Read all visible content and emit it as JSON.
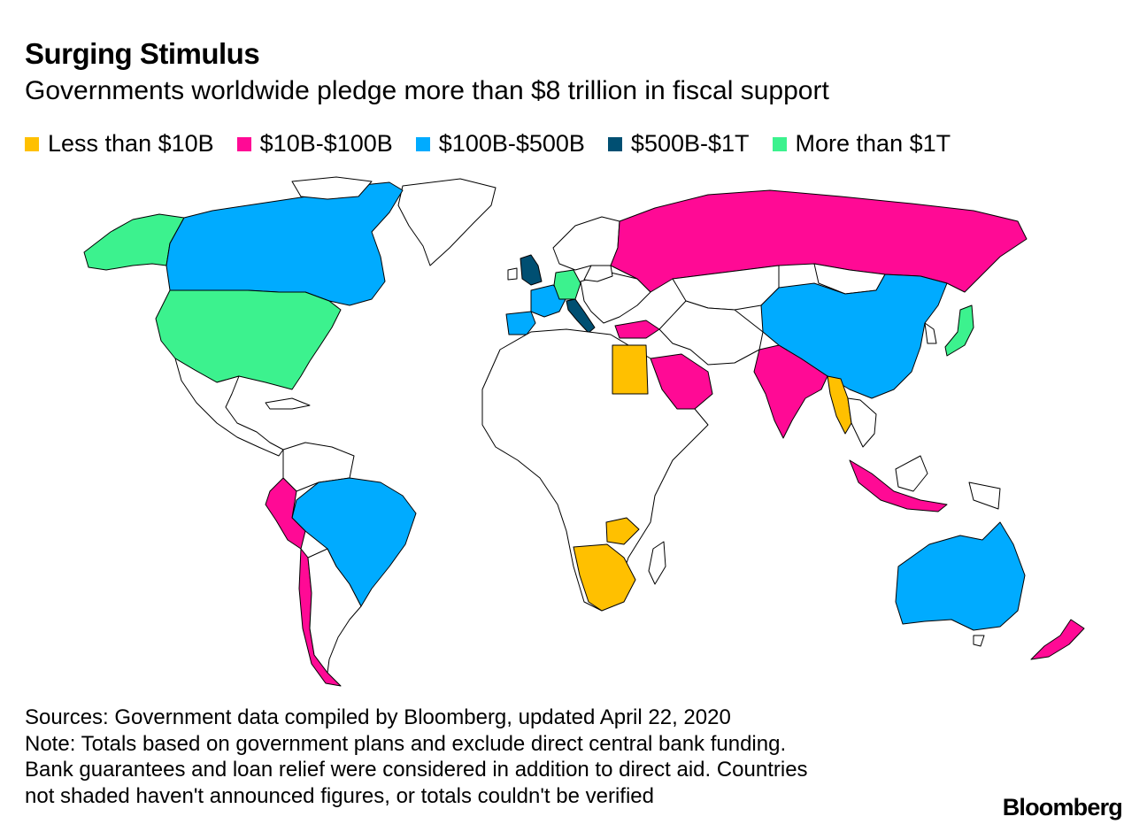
{
  "header": {
    "title": "Surging Stimulus",
    "subtitle": "Governments worldwide pledge more than $8 trillion in fiscal support"
  },
  "legend": {
    "items": [
      {
        "label": "Less than $10B",
        "color": "#ffc000"
      },
      {
        "label": "$10B-$100B",
        "color": "#ff0a95"
      },
      {
        "label": "$100B-$500B",
        "color": "#00abff"
      },
      {
        "label": "$500B-$1T",
        "color": "#004f72"
      },
      {
        "label": "More than $1T",
        "color": "#3cf28e"
      }
    ]
  },
  "map": {
    "unshaded_color": "#ffffff",
    "countries": {
      "usa": "More than $1T",
      "alaska": "More than $1T",
      "germany": "More than $1T",
      "japan": "More than $1T",
      "uk": "$500B-$1T",
      "italy": "$500B-$1T",
      "canada": "$100B-$500B",
      "brazil": "$100B-$500B",
      "china": "$100B-$500B",
      "australia": "$100B-$500B",
      "france": "$100B-$500B",
      "spain": "$100B-$500B",
      "russia": "$10B-$100B",
      "india": "$10B-$100B",
      "saudi_arabia": "$10B-$100B",
      "peru": "$10B-$100B",
      "chile": "$10B-$100B",
      "indonesia": "$10B-$100B",
      "turkey": "$10B-$100B",
      "new_zealand": "$10B-$100B",
      "egypt": "Less than $10B",
      "south_africa": "Less than $10B",
      "myanmar": "Less than $10B",
      "zambia": "Less than $10B"
    }
  },
  "notes": {
    "line1": "Sources: Government data compiled by Bloomberg, updated April 22, 2020",
    "line2": "Note: Totals based on government plans and exclude direct central bank funding.",
    "line3": "Bank guarantees and loan relief were considered in addition to direct aid. Countries",
    "line4": "not shaded haven't announced figures, or totals couldn't be verified"
  },
  "brand": "Bloomberg"
}
